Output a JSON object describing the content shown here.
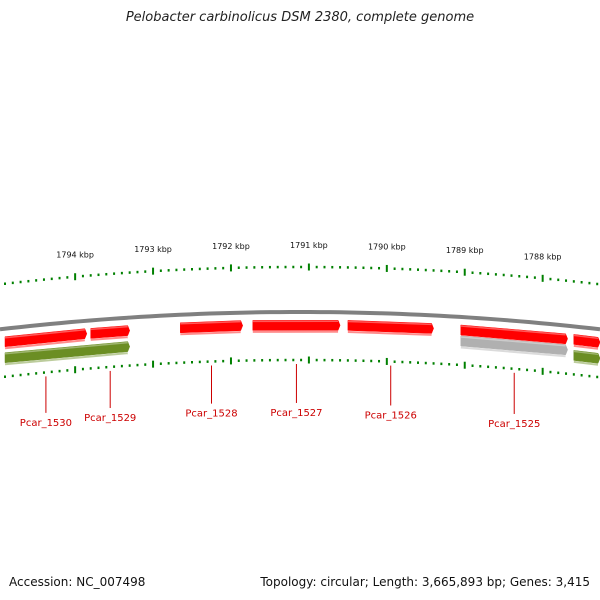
{
  "title": "Pelobacter carbinolicus DSM 2380, complete genome",
  "footer": {
    "accession": "Accession: NC_007498",
    "topology": "Topology: circular; Length: 3,665,893 bp; Genes: 3,415"
  },
  "colors": {
    "forward_gene": "#ff0000",
    "reverse_gene": "#6b8e23",
    "other_feature": "#b0b0b0",
    "backbone": "#808080",
    "tick": "#008000",
    "locus_label": "#cc0000"
  },
  "chart_data": {
    "type": "genome_map",
    "topology": "circular",
    "genome_length_bp": 3665893,
    "view_kbp": [
      1787.2,
      1794.9
    ],
    "scale_ticks": [
      {
        "kbp": 1794,
        "label": "1794 kbp"
      },
      {
        "kbp": 1793,
        "label": "1793 kbp"
      },
      {
        "kbp": 1792,
        "label": "1792 kbp"
      },
      {
        "kbp": 1791,
        "label": "1791 kbp"
      },
      {
        "kbp": 1790,
        "label": "1790 kbp"
      },
      {
        "kbp": 1789,
        "label": "1789 kbp"
      },
      {
        "kbp": 1788,
        "label": "1788 kbp"
      }
    ],
    "genes": [
      {
        "locus": "Pcar_1530",
        "start_kbp": 1794.9,
        "end_kbp": 1793.85,
        "track": "forward",
        "label": "Pcar_1530"
      },
      {
        "locus": "Pcar_1529",
        "start_kbp": 1793.8,
        "end_kbp": 1793.3,
        "track": "forward",
        "label": "Pcar_1529"
      },
      {
        "locus": "Pcar_1528",
        "start_kbp": 1792.65,
        "end_kbp": 1791.85,
        "track": "forward",
        "label": "Pcar_1528"
      },
      {
        "locus": "Pcar_1527",
        "start_kbp": 1791.72,
        "end_kbp": 1790.6,
        "track": "forward",
        "label": "Pcar_1527"
      },
      {
        "locus": "Pcar_1526",
        "start_kbp": 1790.5,
        "end_kbp": 1789.4,
        "track": "forward",
        "label": "Pcar_1526"
      },
      {
        "locus": "Pcar_1525",
        "start_kbp": 1789.05,
        "end_kbp": 1787.68,
        "track": "forward",
        "label": "Pcar_1525"
      },
      {
        "locus": "",
        "start_kbp": 1787.6,
        "end_kbp": 1787.2,
        "track": "forward",
        "label": ""
      },
      {
        "locus": "",
        "start_kbp": 1794.9,
        "end_kbp": 1793.3,
        "track": "reverse",
        "label": ""
      },
      {
        "locus": "",
        "start_kbp": 1789.05,
        "end_kbp": 1787.68,
        "track": "other",
        "label": ""
      },
      {
        "locus": "",
        "start_kbp": 1787.6,
        "end_kbp": 1787.2,
        "track": "reverse",
        "label": ""
      }
    ]
  }
}
